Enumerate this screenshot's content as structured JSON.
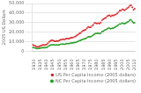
{
  "chart_data": {
    "type": "line",
    "ylabel": "2005 US Dollars",
    "x": [
      1929,
      1930,
      1931,
      1932,
      1933,
      1934,
      1935,
      1936,
      1937,
      1938,
      1939,
      1940,
      1941,
      1942,
      1943,
      1944,
      1945,
      1946,
      1947,
      1948,
      1949,
      1950,
      1951,
      1952,
      1953,
      1954,
      1955,
      1956,
      1957,
      1958,
      1959,
      1960,
      1961,
      1962,
      1963,
      1964,
      1965,
      1966,
      1967,
      1968,
      1969,
      1970,
      1971,
      1972,
      1973,
      1974,
      1975,
      1976,
      1977,
      1978,
      1979,
      1980,
      1981,
      1982,
      1983,
      1984,
      1985,
      1986,
      1987,
      1988,
      1989,
      1990,
      1991,
      1992,
      1993,
      1994,
      1995,
      1996,
      1997,
      1998,
      1999,
      2000,
      2001,
      2002,
      2003,
      2004,
      2005,
      2006,
      2007,
      2008,
      2009,
      2010
    ],
    "series": [
      {
        "name": "US Per Capita Income (2005 dollars)",
        "color": "#d62728",
        "marker": "square",
        "line_style": "none",
        "values": [
          6500,
          6000,
          5500,
          4500,
          4500,
          5000,
          5500,
          6000,
          6500,
          6300,
          6700,
          7000,
          8200,
          9800,
          10800,
          11500,
          11200,
          10500,
          10300,
          10800,
          10500,
          11200,
          11800,
          12000,
          12500,
          12000,
          12800,
          13200,
          13300,
          13000,
          14000,
          14200,
          14300,
          15000,
          15500,
          16500,
          17500,
          18500,
          19000,
          20500,
          21500,
          22000,
          22500,
          24000,
          25500,
          25000,
          25000,
          26500,
          27500,
          29500,
          29500,
          29000,
          29500,
          29000,
          30000,
          32500,
          33500,
          34500,
          35000,
          36500,
          37500,
          37500,
          36500,
          37500,
          37500,
          38000,
          38500,
          39500,
          41000,
          42500,
          42500,
          44000,
          43500,
          43000,
          44000,
          45000,
          46000,
          47500,
          48000,
          46000,
          43500,
          44500
        ]
      },
      {
        "name": "NC Per Capita Income (2005 dollars)",
        "color": "#2ca02c",
        "marker": "circle",
        "line_style": "solid",
        "values": [
          3800,
          3600,
          3300,
          2700,
          2700,
          2900,
          3200,
          3500,
          3700,
          3500,
          3700,
          3900,
          4700,
          5700,
          6300,
          6600,
          6600,
          6600,
          6400,
          6600,
          6300,
          6800,
          7200,
          7300,
          7400,
          7100,
          7600,
          7900,
          8000,
          7900,
          8400,
          8600,
          8700,
          9000,
          9200,
          9700,
          10300,
          11000,
          11300,
          12000,
          12500,
          13000,
          13200,
          14000,
          15200,
          15000,
          15200,
          16000,
          16800,
          18000,
          18500,
          18500,
          18800,
          18400,
          18800,
          20500,
          21000,
          22000,
          22500,
          23500,
          24000,
          24000,
          23500,
          24000,
          24000,
          25000,
          25800,
          26500,
          27500,
          28500,
          28500,
          29500,
          29000,
          28800,
          29500,
          30500,
          31000,
          32500,
          33000,
          31000,
          29500,
          30000
        ]
      }
    ],
    "xlim": [
      1928.5,
      2010.5
    ],
    "xticks": [
      1930,
      1935,
      1940,
      1945,
      1950,
      1955,
      1960,
      1965,
      1970,
      1975,
      1980,
      1985,
      1990,
      1995,
      2000,
      2005,
      2010
    ],
    "ylim": [
      0,
      50000
    ],
    "yticks": [
      0,
      {
        "value": 10000,
        "label": "10,000"
      },
      {
        "value": 20000,
        "label": "20,000"
      },
      {
        "value": 30000,
        "label": "30,000"
      },
      {
        "value": 40000,
        "label": "40,000"
      },
      {
        "value": 50000,
        "label": "50,000"
      }
    ],
    "grid": "y",
    "legend": "lower right"
  }
}
